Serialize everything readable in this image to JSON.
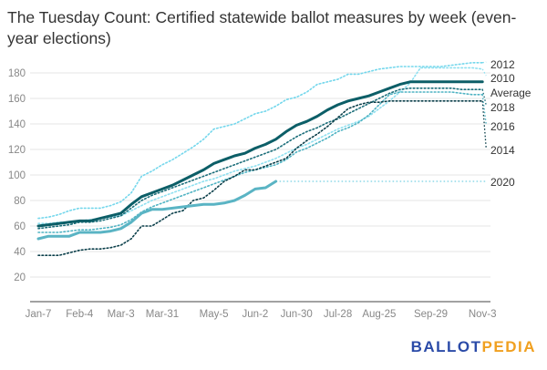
{
  "chart_data": {
    "type": "line",
    "title": "The Tuesday Count: Certified statewide ballot measures by week (even-year elections)",
    "xlabel": "",
    "ylabel": "",
    "x_ticks": [
      "Jan-7",
      "Feb-4",
      "Mar-3",
      "Mar-31",
      "May-5",
      "Jun-2",
      "Jun-30",
      "Jul-28",
      "Aug-25",
      "Sep-29",
      "Nov-3"
    ],
    "x_tick_weeks": [
      0,
      4,
      8,
      12,
      17,
      21,
      25,
      29,
      33,
      38,
      43
    ],
    "x_unit": "week starting Jan-7 (weekly)",
    "ylim": [
      0,
      190
    ],
    "y_ticks": [
      20,
      40,
      60,
      80,
      100,
      120,
      140,
      160,
      180
    ],
    "grid": true,
    "legend": "direct labels at right",
    "series": [
      {
        "name": "2012",
        "color": "#74d7ec",
        "style": "dotted",
        "width": 1.6,
        "values": [
          66,
          67,
          69,
          72,
          74,
          74,
          74,
          76,
          79,
          86,
          99,
          103,
          108,
          112,
          117,
          122,
          128,
          136,
          138,
          140,
          144,
          148,
          150,
          154,
          159,
          161,
          165,
          171,
          173,
          175,
          179,
          179,
          181,
          183,
          184,
          185,
          185,
          185,
          185,
          185,
          186,
          187,
          188,
          188
        ]
      },
      {
        "name": "2010",
        "color": "#8fe0f0",
        "style": "dotted",
        "width": 1.6,
        "values": [
          62,
          62,
          63,
          63,
          64,
          65,
          66,
          67,
          68,
          72,
          76,
          80,
          83,
          86,
          89,
          92,
          95,
          97,
          100,
          103,
          105,
          107,
          110,
          113,
          117,
          121,
          124,
          128,
          132,
          136,
          139,
          142,
          146,
          152,
          158,
          165,
          172,
          184,
          184,
          184,
          184,
          184,
          184,
          183
        ]
      },
      {
        "name": "Average",
        "color": "#0c5e67",
        "style": "solid",
        "width": 3,
        "values": [
          60,
          61,
          62,
          63,
          64,
          64,
          66,
          68,
          70,
          77,
          83,
          86,
          89,
          92,
          96,
          100,
          104,
          109,
          112,
          115,
          117,
          121,
          124,
          128,
          134,
          139,
          142,
          146,
          151,
          155,
          158,
          160,
          162,
          165,
          168,
          171,
          173,
          173,
          173,
          173,
          173,
          173,
          173,
          173
        ]
      },
      {
        "name": "2018",
        "color": "#1b6e7a",
        "style": "dotted",
        "width": 1.6,
        "values": [
          58,
          59,
          60,
          61,
          63,
          63,
          64,
          66,
          68,
          74,
          80,
          84,
          87,
          90,
          93,
          96,
          99,
          102,
          105,
          108,
          111,
          114,
          117,
          120,
          125,
          130,
          134,
          137,
          141,
          144,
          148,
          152,
          156,
          160,
          164,
          167,
          168,
          168,
          168,
          168,
          168,
          167,
          167,
          167
        ]
      },
      {
        "name": "2016",
        "color": "#4fb3c3",
        "style": "dotted",
        "width": 1.6,
        "values": [
          55,
          55,
          55,
          56,
          57,
          57,
          58,
          59,
          61,
          65,
          71,
          75,
          78,
          81,
          84,
          87,
          90,
          93,
          96,
          99,
          102,
          104,
          106,
          108,
          112,
          118,
          121,
          125,
          129,
          134,
          137,
          141,
          147,
          155,
          163,
          165,
          165,
          165,
          165,
          165,
          165,
          164,
          163,
          163
        ]
      },
      {
        "name": "2014",
        "color": "#0b3f4a",
        "style": "dotted",
        "width": 1.6,
        "values": [
          37,
          37,
          37,
          39,
          41,
          42,
          42,
          43,
          45,
          50,
          60,
          60,
          65,
          70,
          72,
          80,
          82,
          88,
          95,
          99,
          104,
          104,
          107,
          110,
          113,
          121,
          127,
          132,
          138,
          145,
          152,
          155,
          157,
          157,
          158,
          158,
          158,
          158,
          158,
          158,
          158,
          158,
          158,
          158
        ]
      },
      {
        "name": "2020",
        "color": "#5ab4c4",
        "style": "solid",
        "width": 3,
        "values": [
          50,
          52,
          52,
          52,
          55,
          55,
          55,
          56,
          58,
          63,
          70,
          73,
          73,
          74,
          75,
          76,
          77,
          77,
          78,
          80,
          84,
          89,
          90,
          95
        ],
        "flat_extension_value": 95,
        "flat_extension_color": "#8fd8e8"
      }
    ]
  },
  "branding": {
    "logo_part1": "BALLOT",
    "logo_part2": "PEDIA",
    "color1": "#2b4ba8",
    "color2": "#f0a020"
  }
}
